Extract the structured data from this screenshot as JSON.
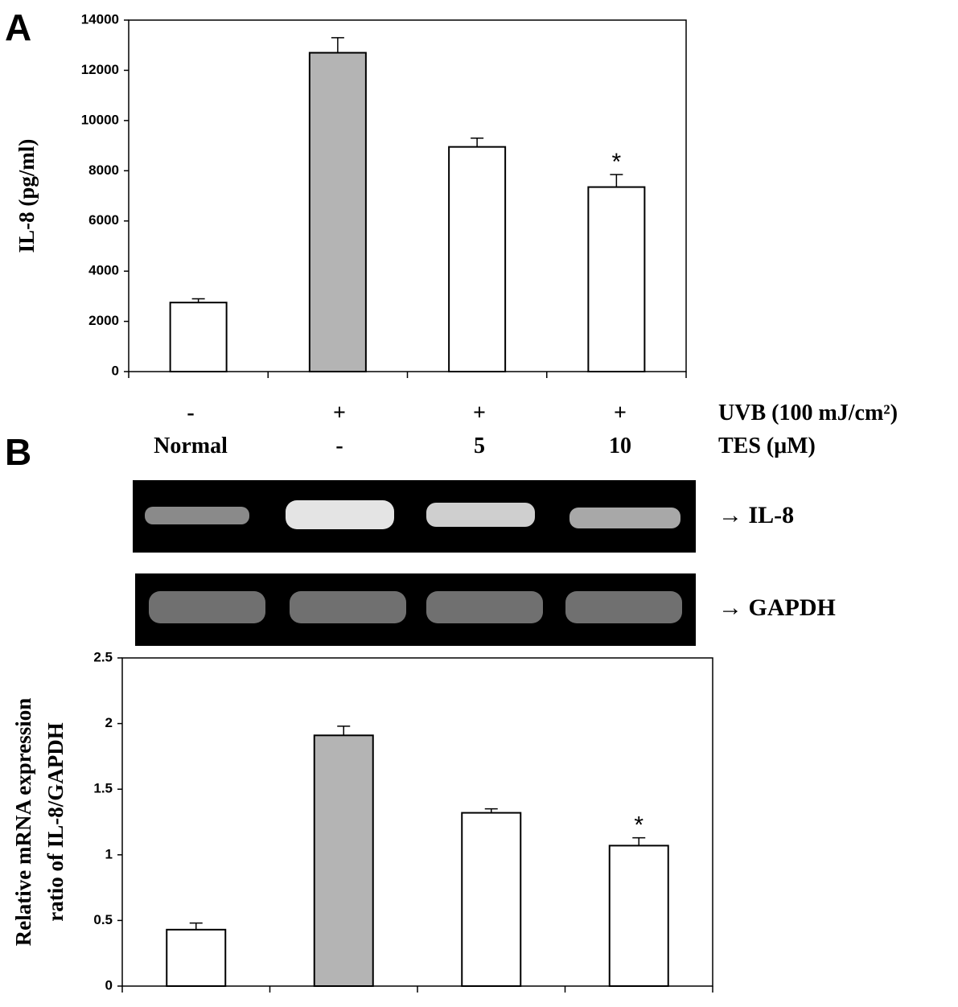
{
  "panel_labels": [
    "A",
    "B"
  ],
  "conditions": [
    {
      "label": "UVB (100 mJ/cm²)",
      "values": [
        "-",
        "+",
        "+",
        "+"
      ]
    },
    {
      "label": "TES  (μM)",
      "values": [
        "Normal",
        "-",
        "5",
        "10"
      ]
    }
  ],
  "gel_labels": [
    "→ IL-8",
    "→ GAPDH"
  ],
  "chart_data": [
    {
      "type": "bar",
      "y_label": [
        "IL-8 (pg/ml)"
      ],
      "series": [
        {
          "values": [
            2750,
            12700,
            8950,
            7350
          ],
          "errors": [
            150,
            600,
            350,
            500
          ],
          "colors": [
            "#ffffff",
            "#b4b4b4",
            "#ffffff",
            "#ffffff"
          ]
        }
      ],
      "annotations": [
        null,
        null,
        null,
        "*"
      ],
      "ylim": [
        0,
        14000
      ],
      "yticks": [
        0,
        2000,
        4000,
        6000,
        8000,
        10000,
        12000,
        14000
      ]
    },
    {
      "type": "bar",
      "y_label": [
        "Relative  mRNA expression",
        "ratio of IL-8/GAPDH"
      ],
      "series": [
        {
          "values": [
            0.43,
            1.91,
            1.32,
            1.07
          ],
          "errors": [
            0.05,
            0.07,
            0.03,
            0.06
          ],
          "colors": [
            "#ffffff",
            "#b4b4b4",
            "#ffffff",
            "#ffffff"
          ]
        }
      ],
      "annotations": [
        null,
        null,
        null,
        "*"
      ],
      "ylim": [
        0,
        2.5
      ],
      "yticks": [
        0,
        0.5,
        1,
        1.5,
        2,
        2.5
      ]
    }
  ]
}
